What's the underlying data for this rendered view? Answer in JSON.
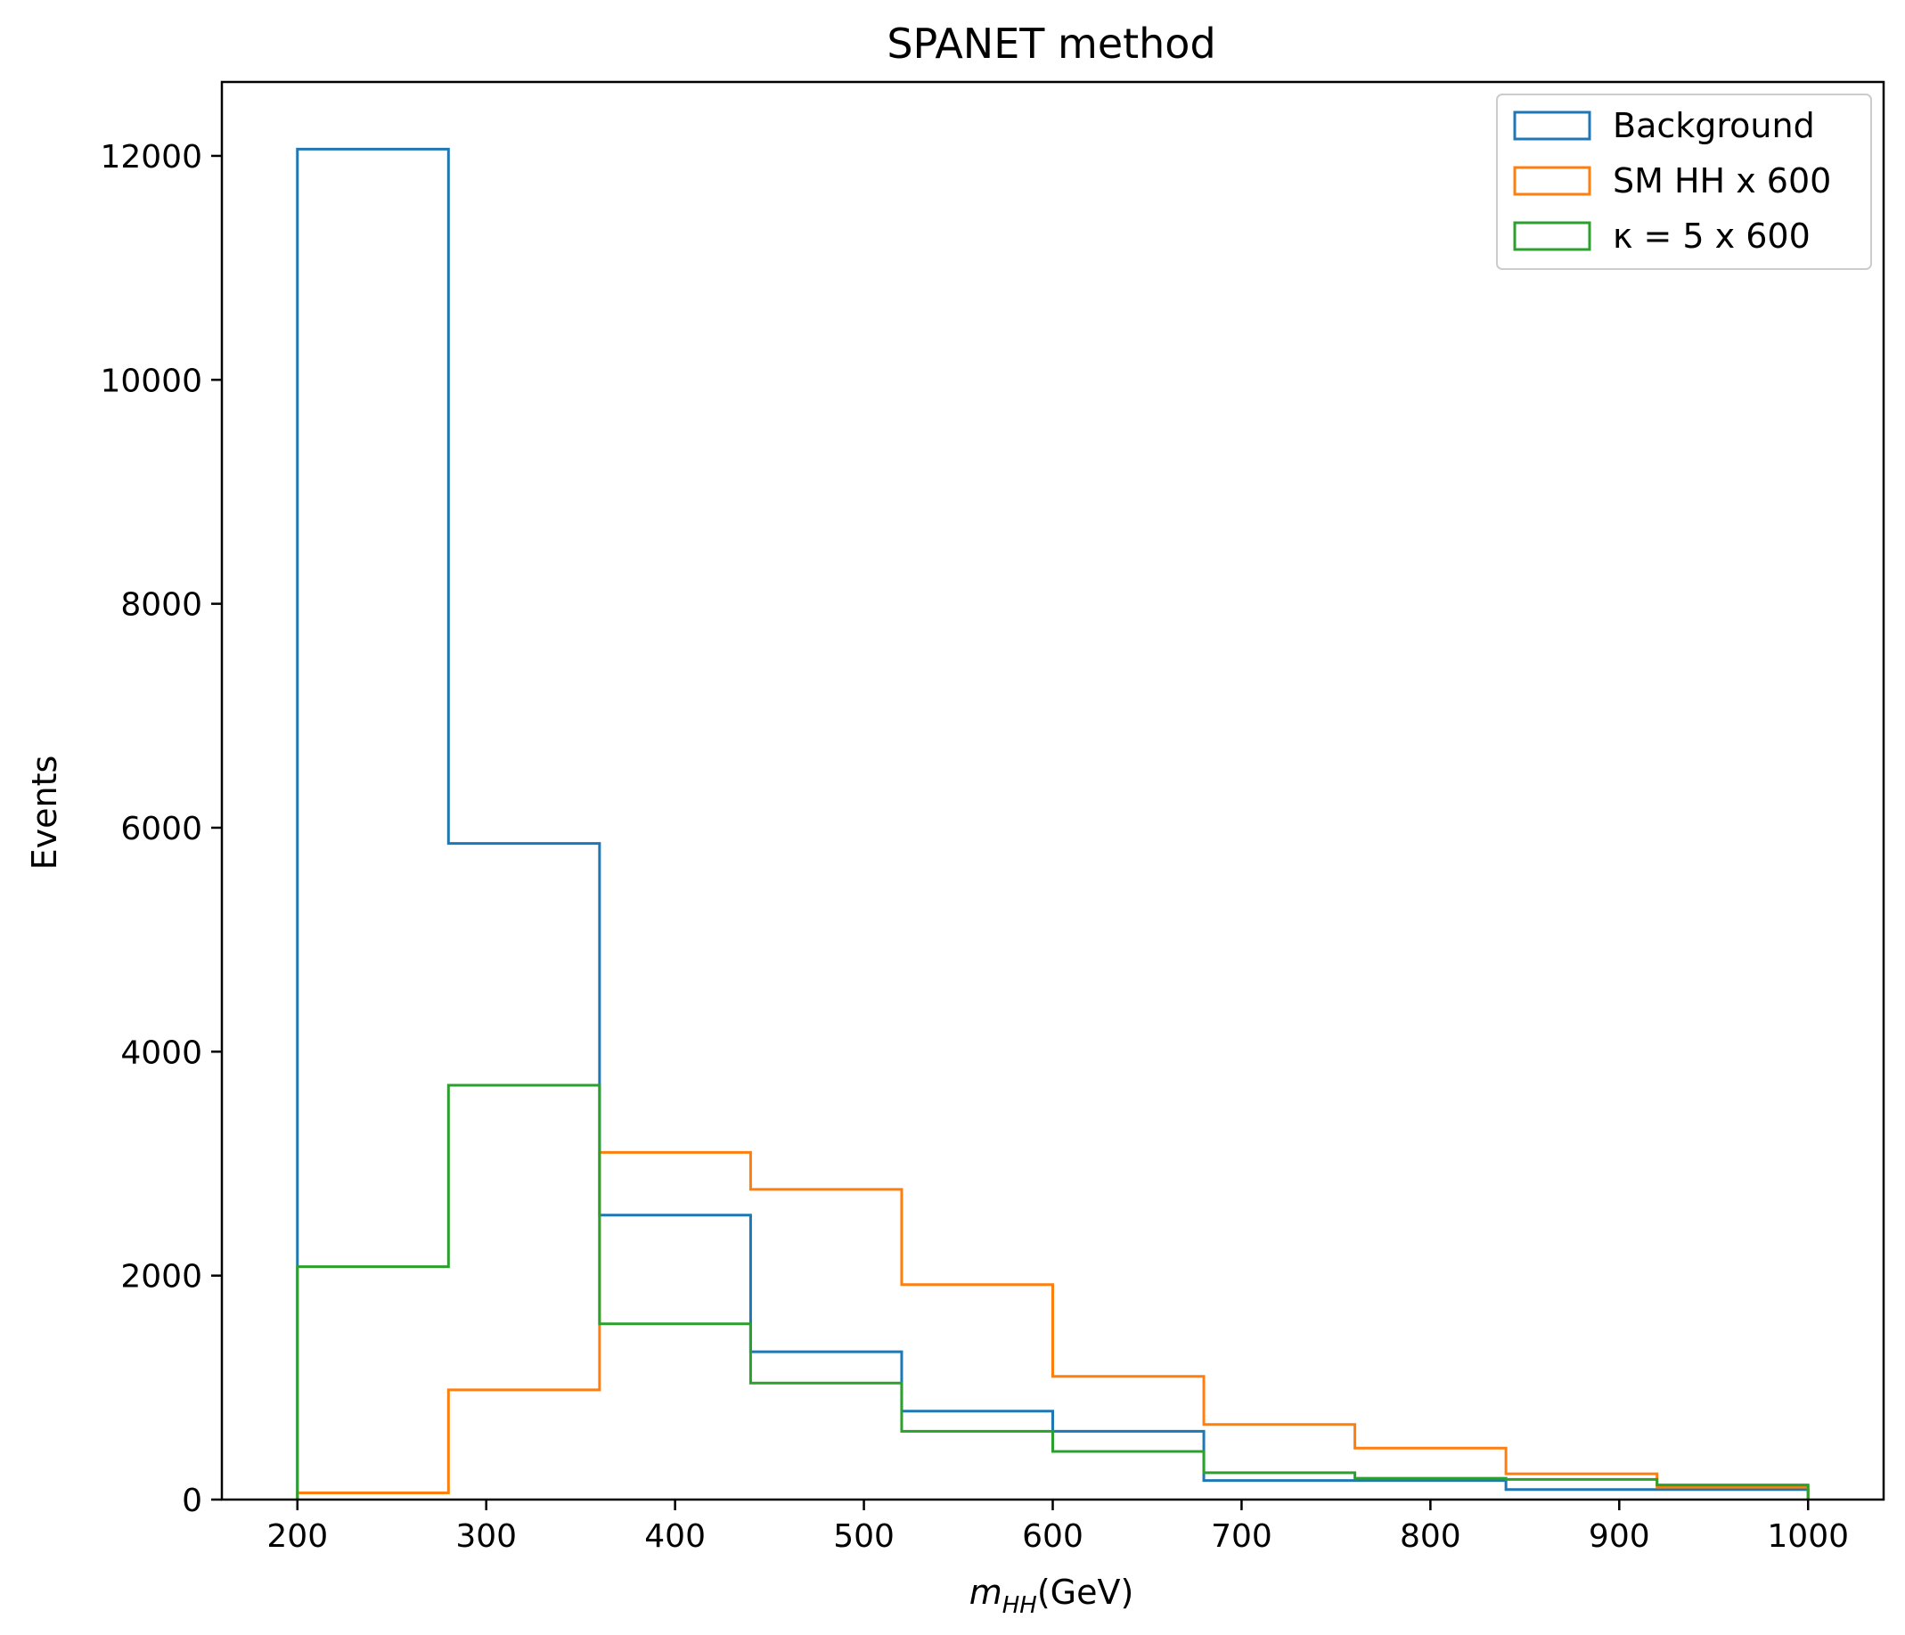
{
  "chart_data": {
    "type": "histogram-step",
    "title": "SPANET method",
    "xlabel": {
      "symbol": "m",
      "subscript": "HH",
      "unit": "(GeV)"
    },
    "ylabel": "Events",
    "xlim": [
      160,
      1040
    ],
    "ylim": [
      0,
      12660
    ],
    "x_ticks": [
      200,
      300,
      400,
      500,
      600,
      700,
      800,
      900,
      1000
    ],
    "y_ticks": [
      0,
      2000,
      4000,
      6000,
      8000,
      10000,
      12000
    ],
    "bin_edges": [
      200,
      280,
      360,
      440,
      520,
      600,
      680,
      760,
      840,
      920,
      1000
    ],
    "legend_position": "upper right",
    "grid": false,
    "series": [
      {
        "name": "Background",
        "color": "#1f77b4",
        "values": [
          12060,
          5860,
          2540,
          1320,
          790,
          610,
          170,
          170,
          90,
          90
        ]
      },
      {
        "name": "SM HH x 600",
        "color": "#ff7f0e",
        "values": [
          60,
          980,
          3100,
          2770,
          1920,
          1100,
          670,
          460,
          230,
          110
        ]
      },
      {
        "name": "κ = 5 x 600",
        "color": "#2ca02c",
        "values": [
          2080,
          3700,
          1570,
          1040,
          610,
          430,
          240,
          190,
          180,
          130
        ]
      }
    ]
  }
}
